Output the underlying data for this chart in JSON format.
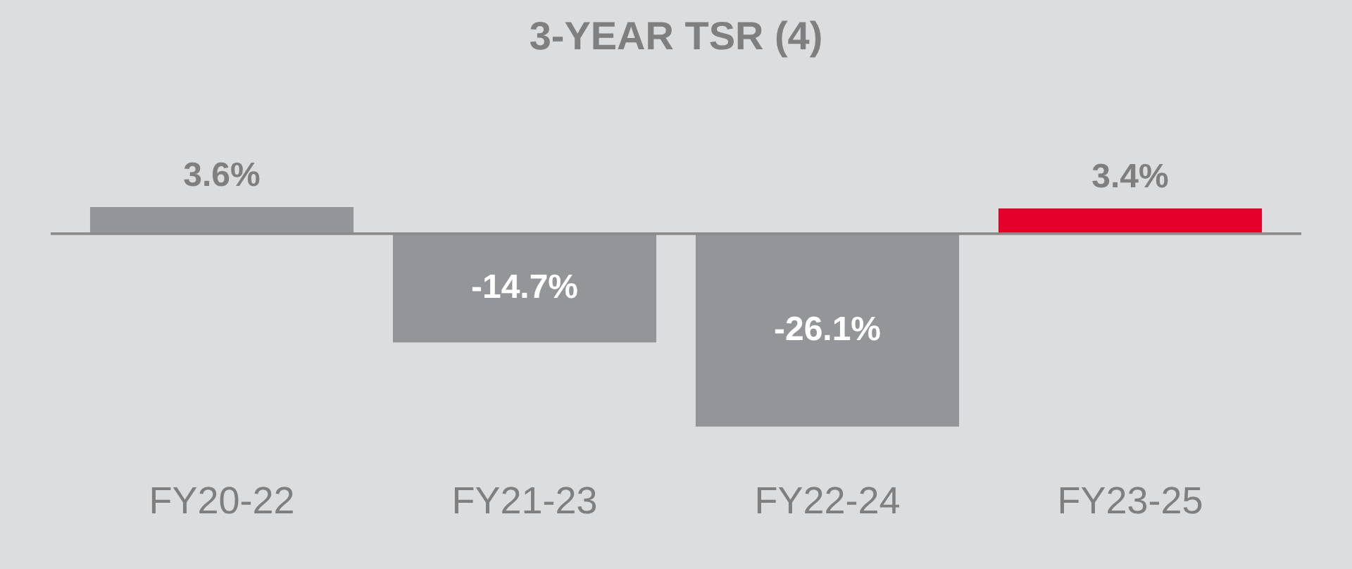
{
  "chart_data": {
    "type": "bar",
    "title": "3-YEAR TSR (4)",
    "categories": [
      "FY20-22",
      "FY21-23",
      "FY22-24",
      "FY23-25"
    ],
    "values": [
      3.6,
      -14.7,
      -26.1,
      3.4
    ],
    "colors": [
      "#939598",
      "#939598",
      "#939598",
      "#e4002b"
    ],
    "value_labels": [
      "3.6%",
      "-14.7%",
      "-26.1%",
      "3.4%"
    ]
  }
}
